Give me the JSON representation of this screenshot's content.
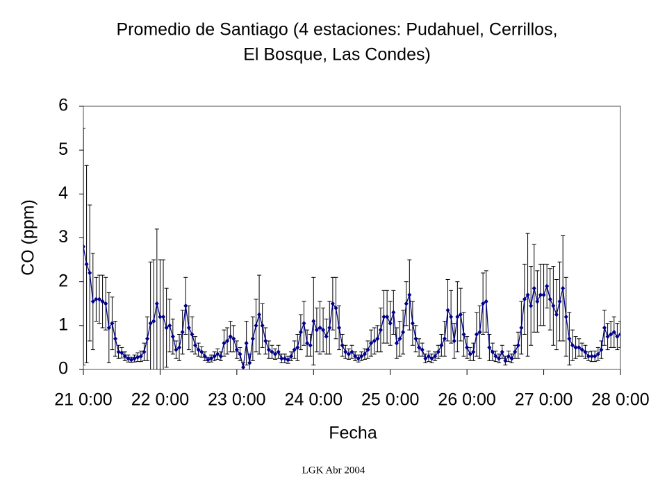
{
  "chart_data": {
    "type": "line",
    "title": [
      "Promedio de Santiago (4 estaciones: Pudahuel, Cerrillos,",
      "El Bosque, Las Condes)"
    ],
    "xlabel": "Fecha",
    "ylabel": "CO (ppm)",
    "xlim": [
      0,
      168
    ],
    "ylim": [
      0,
      6
    ],
    "xticks": [
      {
        "value": 0,
        "label": "21 0:00"
      },
      {
        "value": 24,
        "label": "22 0:00"
      },
      {
        "value": 48,
        "label": "23 0:00"
      },
      {
        "value": 72,
        "label": "24 0:00"
      },
      {
        "value": 96,
        "label": "25 0:00"
      },
      {
        "value": 120,
        "label": "26 0:00"
      },
      {
        "value": 144,
        "label": "27 0:00"
      },
      {
        "value": 168,
        "label": "28 0:00"
      }
    ],
    "yticks": [
      0,
      1,
      2,
      3,
      4,
      5,
      6
    ],
    "x": [
      0,
      1,
      2,
      3,
      4,
      5,
      6,
      7,
      8,
      9,
      10,
      11,
      12,
      13,
      14,
      15,
      16,
      17,
      18,
      19,
      20,
      21,
      22,
      23,
      24,
      25,
      26,
      27,
      28,
      29,
      30,
      31,
      32,
      33,
      34,
      35,
      36,
      37,
      38,
      39,
      40,
      41,
      42,
      43,
      44,
      45,
      46,
      47,
      48,
      49,
      50,
      51,
      52,
      53,
      54,
      55,
      56,
      57,
      58,
      59,
      60,
      61,
      62,
      63,
      64,
      65,
      66,
      67,
      68,
      69,
      70,
      71,
      72,
      73,
      74,
      75,
      76,
      77,
      78,
      79,
      80,
      81,
      82,
      83,
      84,
      85,
      86,
      87,
      88,
      89,
      90,
      91,
      92,
      93,
      94,
      95,
      96,
      97,
      98,
      99,
      100,
      101,
      102,
      103,
      104,
      105,
      106,
      107,
      108,
      109,
      110,
      111,
      112,
      113,
      114,
      115,
      116,
      117,
      118,
      119,
      120,
      121,
      122,
      123,
      124,
      125,
      126,
      127,
      128,
      129,
      130,
      131,
      132,
      133,
      134,
      135,
      136,
      137,
      138,
      139,
      140,
      141,
      142,
      143,
      144,
      145,
      146,
      147,
      148,
      149,
      150,
      151,
      152,
      153,
      154,
      155,
      156,
      157,
      158,
      159,
      160,
      161,
      162,
      163,
      164,
      165,
      166,
      167,
      168
    ],
    "series": [
      {
        "color": "#00008b",
        "values": [
          2.8,
          2.4,
          2.2,
          1.55,
          1.6,
          1.6,
          1.55,
          1.5,
          0.95,
          1.05,
          0.7,
          0.4,
          0.38,
          0.3,
          0.25,
          0.22,
          0.25,
          0.28,
          0.3,
          0.4,
          0.7,
          1.05,
          1.1,
          1.5,
          1.2,
          1.2,
          0.95,
          1.0,
          0.75,
          0.45,
          0.5,
          0.85,
          1.45,
          0.95,
          0.8,
          0.55,
          0.45,
          0.4,
          0.3,
          0.22,
          0.25,
          0.3,
          0.35,
          0.3,
          0.6,
          0.65,
          0.75,
          0.7,
          0.45,
          0.35,
          0.05,
          0.6,
          0.15,
          0.7,
          1.0,
          1.25,
          1.0,
          0.65,
          0.45,
          0.4,
          0.35,
          0.4,
          0.25,
          0.25,
          0.22,
          0.3,
          0.45,
          0.5,
          0.85,
          1.05,
          0.6,
          0.55,
          1.1,
          0.9,
          0.95,
          0.9,
          0.75,
          0.95,
          1.5,
          1.4,
          0.95,
          0.55,
          0.4,
          0.35,
          0.4,
          0.3,
          0.25,
          0.3,
          0.35,
          0.45,
          0.6,
          0.65,
          0.7,
          0.9,
          1.2,
          1.2,
          1.05,
          1.3,
          0.6,
          0.7,
          0.85,
          1.5,
          1.7,
          1.05,
          0.7,
          0.5,
          0.45,
          0.25,
          0.3,
          0.25,
          0.3,
          0.4,
          0.55,
          0.7,
          1.35,
          1.2,
          0.65,
          1.2,
          1.25,
          0.8,
          0.5,
          0.35,
          0.4,
          0.8,
          0.85,
          1.5,
          1.55,
          0.5,
          0.4,
          0.3,
          0.25,
          0.4,
          0.2,
          0.3,
          0.25,
          0.4,
          0.55,
          0.95,
          1.6,
          1.7,
          1.45,
          1.85,
          1.55,
          1.7,
          1.7,
          1.9,
          1.6,
          1.45,
          1.25,
          1.55,
          1.85,
          1.2,
          0.7,
          0.55,
          0.5,
          0.5,
          0.45,
          0.4,
          0.3,
          0.3,
          0.3,
          0.35,
          0.45,
          0.95,
          0.75,
          0.8,
          0.85,
          0.75,
          0.8
        ],
        "errors": [
          2.7,
          2.25,
          1.55,
          1.1,
          0.5,
          0.55,
          0.6,
          0.6,
          0.8,
          0.6,
          0.4,
          0.15,
          0.12,
          0.1,
          0.08,
          0.06,
          0.08,
          0.1,
          0.12,
          0.2,
          0.5,
          1.4,
          1.4,
          1.7,
          1.3,
          1.3,
          0.9,
          0.6,
          0.4,
          0.2,
          0.3,
          0.5,
          0.65,
          0.5,
          0.4,
          0.2,
          0.15,
          0.12,
          0.1,
          0.06,
          0.08,
          0.1,
          0.12,
          0.1,
          0.3,
          0.3,
          0.35,
          0.3,
          0.2,
          0.15,
          0.1,
          0.5,
          0.2,
          0.5,
          0.6,
          0.9,
          0.5,
          0.3,
          0.2,
          0.15,
          0.12,
          0.15,
          0.1,
          0.1,
          0.08,
          0.1,
          0.2,
          0.3,
          0.4,
          0.5,
          0.3,
          0.25,
          1.0,
          0.5,
          0.6,
          0.5,
          0.4,
          0.6,
          0.6,
          0.7,
          0.5,
          0.25,
          0.15,
          0.12,
          0.15,
          0.1,
          0.08,
          0.1,
          0.12,
          0.2,
          0.3,
          0.3,
          0.3,
          0.5,
          0.6,
          0.6,
          0.5,
          0.5,
          0.35,
          0.4,
          0.5,
          0.5,
          0.8,
          0.5,
          0.3,
          0.2,
          0.15,
          0.1,
          0.12,
          0.1,
          0.1,
          0.15,
          0.25,
          0.4,
          0.7,
          0.6,
          0.4,
          0.8,
          0.6,
          0.5,
          0.25,
          0.15,
          0.2,
          0.5,
          0.6,
          0.7,
          0.7,
          0.3,
          0.2,
          0.12,
          0.1,
          0.15,
          0.1,
          0.12,
          0.1,
          0.15,
          0.3,
          0.6,
          0.8,
          1.4,
          0.9,
          1.0,
          0.7,
          0.7,
          0.7,
          0.5,
          0.7,
          0.9,
          0.8,
          0.9,
          1.2,
          0.9,
          0.6,
          0.35,
          0.25,
          0.2,
          0.15,
          0.15,
          0.1,
          0.12,
          0.12,
          0.15,
          0.2,
          0.4,
          0.3,
          0.3,
          0.35,
          0.3,
          0.3
        ]
      }
    ]
  },
  "footer": "LGK Abr 2004"
}
